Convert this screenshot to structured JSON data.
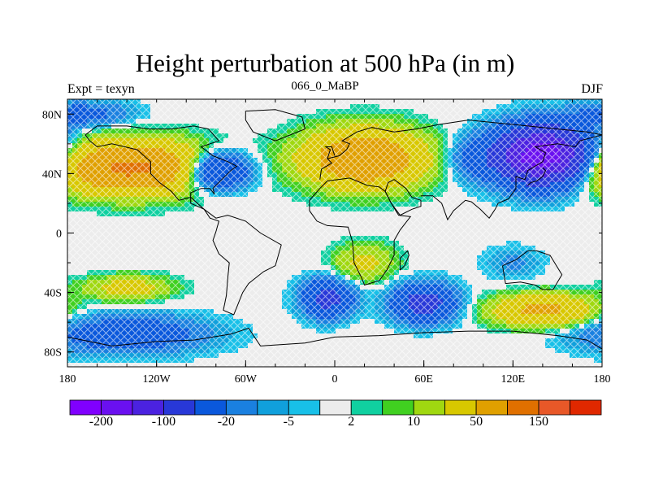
{
  "title": "Height perturbation at 500 hPa (in m)",
  "subtitle": "066_0_MaBP",
  "left_label": "Expt = texyn",
  "right_label": "DJF",
  "axes": {
    "x_ticks": [
      "180",
      "120W",
      "60W",
      "0",
      "60E",
      "120E",
      "180"
    ],
    "y_ticks": [
      "80N",
      "40N",
      "0",
      "40S",
      "80S"
    ]
  },
  "colorbar": {
    "colors": [
      "#8000ff",
      "#6a10f0",
      "#4b22e0",
      "#2838d8",
      "#0a58dc",
      "#1a80e0",
      "#10a0dc",
      "#18c0e8",
      "#ececec",
      "#10d0a0",
      "#40d020",
      "#a0d810",
      "#d8c800",
      "#e0a000",
      "#e07000",
      "#e85828",
      "#e02800"
    ],
    "labels": [
      "-200",
      "-100",
      "-20",
      "-5",
      "2",
      "10",
      "50",
      "150"
    ]
  },
  "map_data": {
    "lon_range": [
      -180,
      180
    ],
    "lat_range": [
      -90,
      90
    ],
    "field_blobs": [
      {
        "lon": -138,
        "lat": 44,
        "amp": 110,
        "rlon": 50,
        "rlat": 16
      },
      {
        "lon": -80,
        "lat": 42,
        "amp": -75,
        "rlon": 22,
        "rlat": 12
      },
      {
        "lon": 20,
        "lat": 50,
        "amp": 95,
        "rlon": 38,
        "rlat": 18
      },
      {
        "lon": 92,
        "lat": 50,
        "amp": -20,
        "rlon": 18,
        "rlat": 14
      },
      {
        "lon": 140,
        "lat": 52,
        "amp": -190,
        "rlon": 30,
        "rlat": 18
      },
      {
        "lon": -5,
        "lat": -44,
        "amp": -65,
        "rlon": 16,
        "rlat": 12
      },
      {
        "lon": 60,
        "lat": -47,
        "amp": -70,
        "rlon": 20,
        "rlat": 12
      },
      {
        "lon": 140,
        "lat": -52,
        "amp": 60,
        "rlon": 32,
        "rlat": 10
      },
      {
        "lon": -140,
        "lat": -68,
        "amp": -40,
        "rlon": 50,
        "rlat": 12
      },
      {
        "lon": -140,
        "lat": -37,
        "amp": 30,
        "rlon": 28,
        "rlat": 8
      },
      {
        "lon": 120,
        "lat": -20,
        "amp": -12,
        "rlon": 18,
        "rlat": 10
      },
      {
        "lon": 20,
        "lat": -20,
        "amp": 25,
        "rlon": 20,
        "rlat": 12
      },
      {
        "lon": -170,
        "lat": 80,
        "amp": -30,
        "rlon": 30,
        "rlat": 8
      }
    ],
    "coastlines": [
      [
        [
          -168,
          66
        ],
        [
          -160,
          72
        ],
        [
          -140,
          72
        ],
        [
          -125,
          70
        ],
        [
          -110,
          70
        ],
        [
          -95,
          72
        ],
        [
          -85,
          70
        ],
        [
          -78,
          62
        ],
        [
          -90,
          58
        ],
        [
          -82,
          52
        ],
        [
          -72,
          48
        ],
        [
          -66,
          45
        ],
        [
          -70,
          42
        ],
        [
          -76,
          36
        ],
        [
          -82,
          30
        ],
        [
          -81,
          26
        ],
        [
          -84,
          30
        ],
        [
          -90,
          30
        ],
        [
          -97,
          27
        ],
        [
          -97,
          20
        ],
        [
          -88,
          16
        ],
        [
          -84,
          10
        ],
        [
          -78,
          8
        ],
        [
          -80,
          1
        ],
        [
          -82,
          -5
        ],
        [
          -78,
          -14
        ],
        [
          -71,
          -20
        ],
        [
          -72,
          -30
        ],
        [
          -73,
          -42
        ],
        [
          -75,
          -52
        ],
        [
          -68,
          -55
        ],
        [
          -62,
          -40
        ],
        [
          -58,
          -34
        ],
        [
          -48,
          -26
        ],
        [
          -40,
          -22
        ],
        [
          -36,
          -8
        ],
        [
          -50,
          0
        ],
        [
          -60,
          8
        ],
        [
          -72,
          12
        ],
        [
          -80,
          10
        ],
        [
          -88,
          16
        ],
        [
          -97,
          24
        ],
        [
          -105,
          22
        ],
        [
          -110,
          28
        ],
        [
          -118,
          34
        ],
        [
          -124,
          40
        ],
        [
          -124,
          48
        ],
        [
          -133,
          56
        ],
        [
          -150,
          60
        ],
        [
          -160,
          58
        ],
        [
          -165,
          62
        ],
        [
          -168,
          66
        ]
      ],
      [
        [
          -60,
          82
        ],
        [
          -40,
          83
        ],
        [
          -22,
          78
        ],
        [
          -20,
          70
        ],
        [
          -40,
          62
        ],
        [
          -55,
          68
        ],
        [
          -60,
          76
        ],
        [
          -60,
          82
        ]
      ],
      [
        [
          -10,
          36
        ],
        [
          -9,
          43
        ],
        [
          -2,
          47
        ],
        [
          -5,
          50
        ],
        [
          3,
          52
        ],
        [
          8,
          56
        ],
        [
          10,
          60
        ],
        [
          5,
          62
        ],
        [
          15,
          68
        ],
        [
          25,
          71
        ],
        [
          40,
          68
        ],
        [
          55,
          70
        ],
        [
          70,
          73
        ],
        [
          90,
          76
        ],
        [
          110,
          74
        ],
        [
          130,
          72
        ],
        [
          150,
          70
        ],
        [
          170,
          68
        ],
        [
          180,
          66
        ]
      ],
      [
        [
          -17,
          15
        ],
        [
          -17,
          22
        ],
        [
          -10,
          30
        ],
        [
          -5,
          35
        ],
        [
          10,
          37
        ],
        [
          22,
          32
        ],
        [
          30,
          31
        ],
        [
          34,
          28
        ],
        [
          38,
          20
        ],
        [
          43,
          12
        ],
        [
          51,
          11
        ],
        [
          44,
          2
        ],
        [
          40,
          -5
        ],
        [
          40,
          -15
        ],
        [
          35,
          -25
        ],
        [
          30,
          -32
        ],
        [
          20,
          -35
        ],
        [
          18,
          -30
        ],
        [
          13,
          -20
        ],
        [
          12,
          -6
        ],
        [
          9,
          4
        ],
        [
          -5,
          5
        ],
        [
          -12,
          8
        ],
        [
          -17,
          15
        ]
      ],
      [
        [
          34,
          28
        ],
        [
          36,
          34
        ],
        [
          40,
          36
        ],
        [
          48,
          30
        ],
        [
          52,
          24
        ],
        [
          58,
          22
        ],
        [
          58,
          18
        ],
        [
          52,
          16
        ],
        [
          44,
          12
        ],
        [
          38,
          20
        ],
        [
          34,
          28
        ]
      ],
      [
        [
          58,
          25
        ],
        [
          66,
          25
        ],
        [
          72,
          20
        ],
        [
          76,
          9
        ],
        [
          80,
          15
        ],
        [
          88,
          22
        ],
        [
          92,
          21
        ],
        [
          98,
          16
        ],
        [
          104,
          10
        ],
        [
          108,
          16
        ],
        [
          110,
          20
        ],
        [
          117,
          23
        ],
        [
          122,
          30
        ],
        [
          122,
          38
        ],
        [
          128,
          36
        ],
        [
          130,
          42
        ],
        [
          140,
          48
        ],
        [
          142,
          54
        ],
        [
          135,
          58
        ],
        [
          150,
          60
        ],
        [
          162,
          58
        ],
        [
          165,
          62
        ],
        [
          180,
          66
        ]
      ],
      [
        [
          113,
          -22
        ],
        [
          115,
          -34
        ],
        [
          125,
          -33
        ],
        [
          135,
          -35
        ],
        [
          140,
          -38
        ],
        [
          147,
          -38
        ],
        [
          153,
          -28
        ],
        [
          145,
          -15
        ],
        [
          136,
          -12
        ],
        [
          130,
          -12
        ],
        [
          122,
          -18
        ],
        [
          113,
          -22
        ]
      ],
      [
        [
          -180,
          -70
        ],
        [
          -150,
          -76
        ],
        [
          -120,
          -73
        ],
        [
          -95,
          -72
        ],
        [
          -70,
          -68
        ],
        [
          -58,
          -64
        ],
        [
          -50,
          -76
        ],
        [
          -20,
          -74
        ],
        [
          0,
          -70
        ],
        [
          30,
          -69
        ],
        [
          60,
          -67
        ],
        [
          90,
          -66
        ],
        [
          120,
          -66
        ],
        [
          150,
          -69
        ],
        [
          170,
          -72
        ],
        [
          180,
          -78
        ]
      ],
      [
        [
          130,
          32
        ],
        [
          132,
          34
        ],
        [
          136,
          35
        ],
        [
          140,
          38
        ],
        [
          142,
          42
        ],
        [
          140,
          44
        ]
      ],
      [
        [
          -5,
          50
        ],
        [
          -3,
          56
        ],
        [
          -6,
          58
        ],
        [
          -2,
          58
        ],
        [
          0,
          52
        ]
      ],
      [
        [
          44,
          -25
        ],
        [
          47,
          -22
        ],
        [
          50,
          -15
        ],
        [
          49,
          -12
        ],
        [
          44,
          -17
        ],
        [
          44,
          -25
        ]
      ]
    ]
  }
}
